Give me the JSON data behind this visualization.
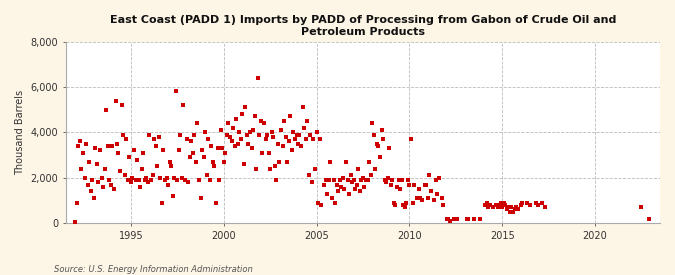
{
  "title": "East Coast (PADD 1) Imports by PADD of Processing from Gabon of Crude Oil and\nPetroleum Products",
  "ylabel": "Thousand Barrels",
  "source": "Source: U.S. Energy Information Administration",
  "background_color": "#fdf5e6",
  "plot_bg_color": "#ffffff",
  "marker_color": "#cc0000",
  "ylim": [
    0,
    8000
  ],
  "yticks": [
    0,
    2000,
    4000,
    6000,
    8000
  ],
  "xlim_start": 1991.5,
  "xlim_end": 2023.5,
  "xticks": [
    1995,
    2000,
    2005,
    2010,
    2015,
    2020
  ],
  "data": [
    [
      1992.0,
      50
    ],
    [
      1992.08,
      900
    ],
    [
      1992.17,
      3400
    ],
    [
      1992.25,
      3600
    ],
    [
      1992.33,
      2400
    ],
    [
      1992.42,
      3100
    ],
    [
      1992.5,
      2000
    ],
    [
      1992.58,
      3500
    ],
    [
      1992.67,
      1700
    ],
    [
      1992.75,
      2700
    ],
    [
      1992.83,
      1400
    ],
    [
      1992.92,
      1900
    ],
    [
      1993.0,
      1100
    ],
    [
      1993.08,
      3300
    ],
    [
      1993.17,
      2600
    ],
    [
      1993.25,
      1800
    ],
    [
      1993.33,
      3200
    ],
    [
      1993.42,
      2000
    ],
    [
      1993.5,
      1600
    ],
    [
      1993.58,
      2400
    ],
    [
      1993.67,
      5000
    ],
    [
      1993.75,
      3400
    ],
    [
      1993.83,
      1900
    ],
    [
      1993.92,
      1700
    ],
    [
      1994.0,
      3400
    ],
    [
      1994.08,
      1500
    ],
    [
      1994.17,
      5400
    ],
    [
      1994.25,
      3500
    ],
    [
      1994.33,
      3100
    ],
    [
      1994.42,
      2300
    ],
    [
      1994.5,
      5200
    ],
    [
      1994.58,
      3900
    ],
    [
      1994.67,
      2100
    ],
    [
      1994.75,
      3700
    ],
    [
      1994.83,
      1900
    ],
    [
      1994.92,
      2900
    ],
    [
      1995.0,
      1800
    ],
    [
      1995.08,
      2000
    ],
    [
      1995.17,
      3200
    ],
    [
      1995.25,
      1900
    ],
    [
      1995.33,
      2800
    ],
    [
      1995.42,
      1900
    ],
    [
      1995.5,
      1600
    ],
    [
      1995.58,
      2400
    ],
    [
      1995.67,
      3100
    ],
    [
      1995.75,
      1900
    ],
    [
      1995.83,
      2000
    ],
    [
      1995.92,
      1800
    ],
    [
      1996.0,
      3900
    ],
    [
      1996.08,
      1900
    ],
    [
      1996.17,
      2100
    ],
    [
      1996.25,
      3700
    ],
    [
      1996.33,
      3400
    ],
    [
      1996.42,
      2500
    ],
    [
      1996.5,
      3800
    ],
    [
      1996.58,
      2000
    ],
    [
      1996.67,
      900
    ],
    [
      1996.75,
      3200
    ],
    [
      1996.83,
      1900
    ],
    [
      1996.92,
      2000
    ],
    [
      1997.0,
      1700
    ],
    [
      1997.08,
      2700
    ],
    [
      1997.17,
      2500
    ],
    [
      1997.25,
      1200
    ],
    [
      1997.33,
      2000
    ],
    [
      1997.42,
      5800
    ],
    [
      1997.5,
      1900
    ],
    [
      1997.58,
      3200
    ],
    [
      1997.67,
      3900
    ],
    [
      1997.75,
      2000
    ],
    [
      1997.83,
      5200
    ],
    [
      1997.92,
      1900
    ],
    [
      1998.0,
      3700
    ],
    [
      1998.08,
      1800
    ],
    [
      1998.17,
      2900
    ],
    [
      1998.25,
      3600
    ],
    [
      1998.33,
      3100
    ],
    [
      1998.42,
      3900
    ],
    [
      1998.5,
      2700
    ],
    [
      1998.58,
      4400
    ],
    [
      1998.67,
      1900
    ],
    [
      1998.75,
      1100
    ],
    [
      1998.83,
      3200
    ],
    [
      1998.92,
      2900
    ],
    [
      1999.0,
      4000
    ],
    [
      1999.08,
      2100
    ],
    [
      1999.17,
      3700
    ],
    [
      1999.25,
      1900
    ],
    [
      1999.33,
      3400
    ],
    [
      1999.42,
      2700
    ],
    [
      1999.5,
      2500
    ],
    [
      1999.58,
      900
    ],
    [
      1999.67,
      3300
    ],
    [
      1999.75,
      1900
    ],
    [
      1999.83,
      4100
    ],
    [
      1999.92,
      3300
    ],
    [
      2000.0,
      2700
    ],
    [
      2000.08,
      3100
    ],
    [
      2000.17,
      3900
    ],
    [
      2000.25,
      4400
    ],
    [
      2000.33,
      3800
    ],
    [
      2000.42,
      3600
    ],
    [
      2000.5,
      4200
    ],
    [
      2000.58,
      3400
    ],
    [
      2000.67,
      4600
    ],
    [
      2000.75,
      3500
    ],
    [
      2000.83,
      4000
    ],
    [
      2000.92,
      3700
    ],
    [
      2001.0,
      4800
    ],
    [
      2001.08,
      2600
    ],
    [
      2001.17,
      5100
    ],
    [
      2001.25,
      3900
    ],
    [
      2001.33,
      3500
    ],
    [
      2001.42,
      4000
    ],
    [
      2001.5,
      3300
    ],
    [
      2001.58,
      4100
    ],
    [
      2001.67,
      4700
    ],
    [
      2001.75,
      2400
    ],
    [
      2001.83,
      6400
    ],
    [
      2001.92,
      3900
    ],
    [
      2002.0,
      4500
    ],
    [
      2002.08,
      3100
    ],
    [
      2002.17,
      4400
    ],
    [
      2002.25,
      3700
    ],
    [
      2002.33,
      3900
    ],
    [
      2002.42,
      3100
    ],
    [
      2002.5,
      2400
    ],
    [
      2002.58,
      4000
    ],
    [
      2002.67,
      3800
    ],
    [
      2002.75,
      2500
    ],
    [
      2002.83,
      1900
    ],
    [
      2002.92,
      3500
    ],
    [
      2003.0,
      2700
    ],
    [
      2003.08,
      4100
    ],
    [
      2003.17,
      3400
    ],
    [
      2003.25,
      4500
    ],
    [
      2003.33,
      3800
    ],
    [
      2003.42,
      2700
    ],
    [
      2003.5,
      3600
    ],
    [
      2003.58,
      4700
    ],
    [
      2003.67,
      3200
    ],
    [
      2003.75,
      4000
    ],
    [
      2003.83,
      3700
    ],
    [
      2003.92,
      3900
    ],
    [
      2004.0,
      3500
    ],
    [
      2004.08,
      3900
    ],
    [
      2004.17,
      3400
    ],
    [
      2004.25,
      5100
    ],
    [
      2004.33,
      4200
    ],
    [
      2004.42,
      3700
    ],
    [
      2004.5,
      4500
    ],
    [
      2004.58,
      2100
    ],
    [
      2004.67,
      3900
    ],
    [
      2004.75,
      1800
    ],
    [
      2004.83,
      3700
    ],
    [
      2004.92,
      2400
    ],
    [
      2005.0,
      4000
    ],
    [
      2005.08,
      900
    ],
    [
      2005.17,
      3700
    ],
    [
      2005.25,
      800
    ],
    [
      2005.42,
      1700
    ],
    [
      2005.5,
      1900
    ],
    [
      2005.58,
      1300
    ],
    [
      2005.67,
      1900
    ],
    [
      2005.75,
      2700
    ],
    [
      2005.83,
      1100
    ],
    [
      2005.92,
      1900
    ],
    [
      2006.0,
      900
    ],
    [
      2006.08,
      1700
    ],
    [
      2006.17,
      1400
    ],
    [
      2006.25,
      1900
    ],
    [
      2006.33,
      1600
    ],
    [
      2006.42,
      2000
    ],
    [
      2006.5,
      1500
    ],
    [
      2006.58,
      2700
    ],
    [
      2006.67,
      1900
    ],
    [
      2006.75,
      1300
    ],
    [
      2006.83,
      2100
    ],
    [
      2006.92,
      1800
    ],
    [
      2007.0,
      1900
    ],
    [
      2007.08,
      1500
    ],
    [
      2007.17,
      1700
    ],
    [
      2007.25,
      2400
    ],
    [
      2007.33,
      1400
    ],
    [
      2007.42,
      1900
    ],
    [
      2007.5,
      2000
    ],
    [
      2007.58,
      1600
    ],
    [
      2007.67,
      1900
    ],
    [
      2007.75,
      1900
    ],
    [
      2007.83,
      2700
    ],
    [
      2007.92,
      2100
    ],
    [
      2008.0,
      4400
    ],
    [
      2008.08,
      3900
    ],
    [
      2008.17,
      2400
    ],
    [
      2008.25,
      3500
    ],
    [
      2008.33,
      3400
    ],
    [
      2008.42,
      2900
    ],
    [
      2008.5,
      4100
    ],
    [
      2008.58,
      3700
    ],
    [
      2008.67,
      1900
    ],
    [
      2008.75,
      1800
    ],
    [
      2008.83,
      2000
    ],
    [
      2008.92,
      3300
    ],
    [
      2009.0,
      1700
    ],
    [
      2009.08,
      1900
    ],
    [
      2009.17,
      900
    ],
    [
      2009.25,
      800
    ],
    [
      2009.33,
      1600
    ],
    [
      2009.42,
      1900
    ],
    [
      2009.5,
      1500
    ],
    [
      2009.58,
      1900
    ],
    [
      2009.67,
      800
    ],
    [
      2009.75,
      700
    ],
    [
      2009.83,
      900
    ],
    [
      2009.92,
      1900
    ],
    [
      2010.0,
      1700
    ],
    [
      2010.08,
      3700
    ],
    [
      2010.17,
      900
    ],
    [
      2010.25,
      1700
    ],
    [
      2010.42,
      1100
    ],
    [
      2010.5,
      1500
    ],
    [
      2010.58,
      1100
    ],
    [
      2010.67,
      1000
    ],
    [
      2010.83,
      1700
    ],
    [
      2010.92,
      1700
    ],
    [
      2011.0,
      1100
    ],
    [
      2011.08,
      2100
    ],
    [
      2011.17,
      1400
    ],
    [
      2011.33,
      1000
    ],
    [
      2011.42,
      1900
    ],
    [
      2011.5,
      1300
    ],
    [
      2011.58,
      2000
    ],
    [
      2011.75,
      1100
    ],
    [
      2011.83,
      800
    ],
    [
      2012.0,
      200
    ],
    [
      2012.08,
      200
    ],
    [
      2012.17,
      100
    ],
    [
      2012.42,
      200
    ],
    [
      2012.58,
      200
    ],
    [
      2013.08,
      200
    ],
    [
      2013.17,
      200
    ],
    [
      2013.5,
      200
    ],
    [
      2013.83,
      200
    ],
    [
      2014.08,
      800
    ],
    [
      2014.17,
      900
    ],
    [
      2014.25,
      700
    ],
    [
      2014.33,
      800
    ],
    [
      2014.5,
      700
    ],
    [
      2014.67,
      800
    ],
    [
      2014.75,
      700
    ],
    [
      2014.83,
      800
    ],
    [
      2014.92,
      900
    ],
    [
      2015.0,
      700
    ],
    [
      2015.08,
      900
    ],
    [
      2015.17,
      800
    ],
    [
      2015.25,
      600
    ],
    [
      2015.33,
      700
    ],
    [
      2015.42,
      500
    ],
    [
      2015.5,
      700
    ],
    [
      2015.58,
      500
    ],
    [
      2015.67,
      600
    ],
    [
      2015.75,
      700
    ],
    [
      2015.83,
      600
    ],
    [
      2016.0,
      800
    ],
    [
      2016.08,
      900
    ],
    [
      2016.33,
      900
    ],
    [
      2016.5,
      800
    ],
    [
      2016.83,
      900
    ],
    [
      2016.92,
      800
    ],
    [
      2017.17,
      900
    ],
    [
      2017.33,
      700
    ],
    [
      2022.5,
      700
    ],
    [
      2022.92,
      200
    ]
  ]
}
